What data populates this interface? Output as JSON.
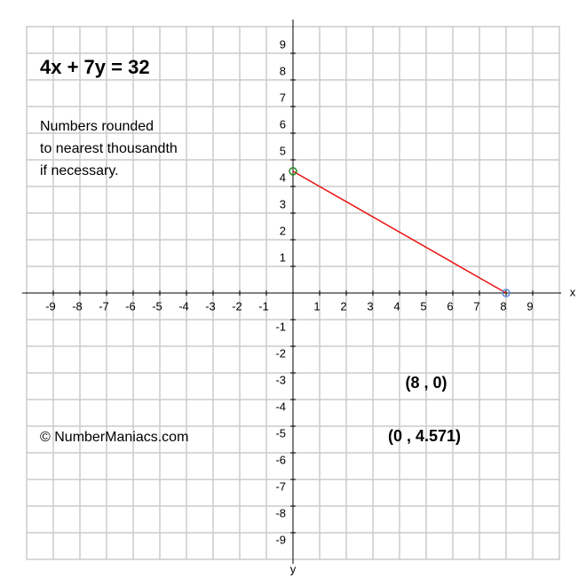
{
  "chart_data": {
    "type": "line",
    "title": "4x + 7y = 32",
    "note": [
      "Numbers rounded",
      "to nearest thousandth",
      "if necessary."
    ],
    "credit": "© NumberManiacs.com",
    "xlabel": "x",
    "ylabel": "y",
    "x": [
      0,
      8
    ],
    "values": [
      4.571,
      0
    ],
    "color": "#ee1111",
    "point_colors": [
      "#228b22",
      "#5b8fd9"
    ],
    "annotations": [
      {
        "text": "(8 , 0)",
        "color": "#4a90e2"
      },
      {
        "text": "(0 , 4.571)",
        "color": "#1a7f1a"
      }
    ],
    "xlim": [
      -10,
      10
    ],
    "ylim": [
      -10,
      10
    ],
    "xticks": [
      -9,
      -8,
      -7,
      -6,
      -5,
      -4,
      -3,
      -2,
      -1,
      1,
      2,
      3,
      4,
      5,
      6,
      7,
      8,
      9
    ],
    "yticks": [
      -9,
      -8,
      -7,
      -6,
      -5,
      -4,
      -3,
      -2,
      -1,
      1,
      2,
      3,
      4,
      5,
      6,
      7,
      8,
      9
    ],
    "grid": true
  }
}
